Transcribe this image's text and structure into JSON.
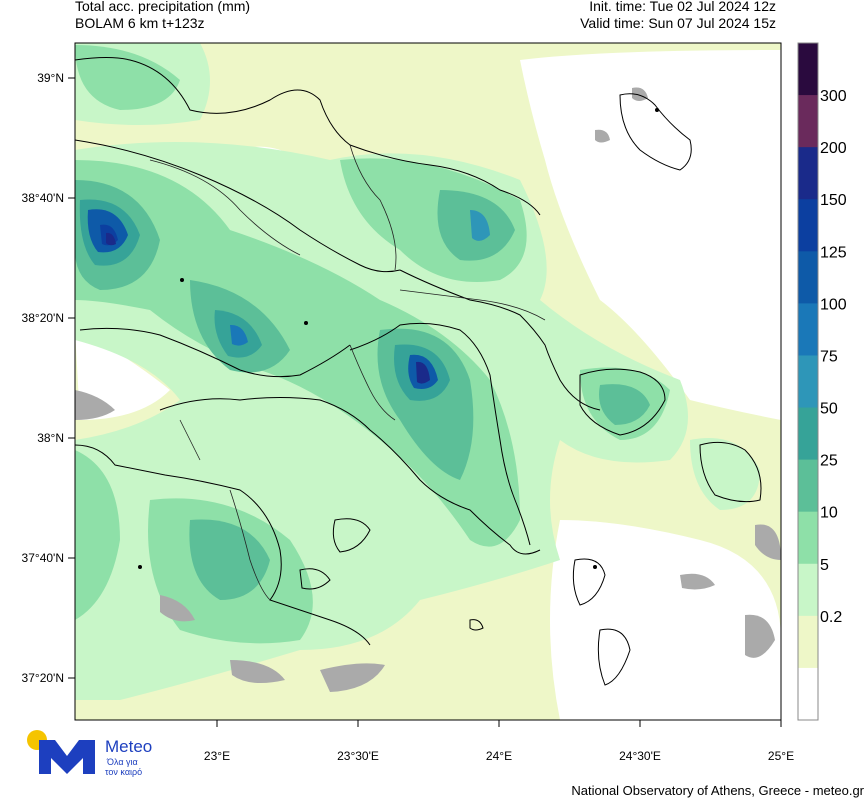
{
  "header": {
    "title": "Total acc. precipitation (mm)",
    "model": "BOLAM 6 km t+123z",
    "init_time": "Init. time: Tue 02 Jul 2024 12z",
    "valid_time": "Valid time: Sun 07 Jul 2024 15z"
  },
  "axes": {
    "lat_labels": [
      "39°N",
      "38°40'N",
      "38°20'N",
      "38°N",
      "37°40'N",
      "37°20'N"
    ],
    "lon_labels": [
      "23°E",
      "23°30'E",
      "24°E",
      "24°30'E",
      "25°E"
    ]
  },
  "colorbar": {
    "labels": [
      "300",
      "200",
      "150",
      "125",
      "100",
      "75",
      "50",
      "25",
      "10",
      "5",
      "0.2"
    ],
    "colors": [
      "#2a0a3e",
      "#6a2a5c",
      "#1a2a8a",
      "#0c3fa0",
      "#0e5aa8",
      "#1a78b8",
      "#2e96b8",
      "#36a398",
      "#5cbf98",
      "#8ee0a8",
      "#c8f6c8",
      "#eef7c8",
      "#ffffff"
    ]
  },
  "logo": {
    "brand": "Meteo",
    "tagline_1": "Όλα για",
    "tagline_2": "τον καιρό",
    "colors": {
      "blue": "#1d3fbf",
      "yellow": "#f5c400"
    }
  },
  "credit": "National Observatory of Athens, Greece - meteo.gr"
}
